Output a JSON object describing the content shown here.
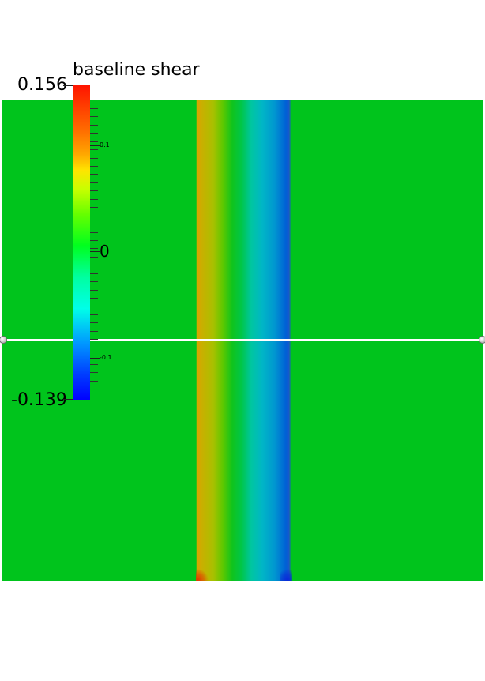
{
  "legend": {
    "title": "baseline shear",
    "max_label": "0.156",
    "min_label": "-0.139",
    "range": [
      -0.139,
      0.156
    ],
    "annotations": [
      {
        "label": "0.1",
        "value": 0.1
      },
      {
        "label": "0",
        "value": 0
      },
      {
        "label": "-0.1",
        "value": -0.1
      }
    ],
    "colormap": "rainbow (blue-to-red)"
  },
  "colors": {
    "background_field": "#00c41c",
    "band_left": "#d9a400",
    "band_right": "#0060d6",
    "probe_line": "#ffffff"
  },
  "icons": {
    "probe_handle": "sphere-handle-icon"
  }
}
